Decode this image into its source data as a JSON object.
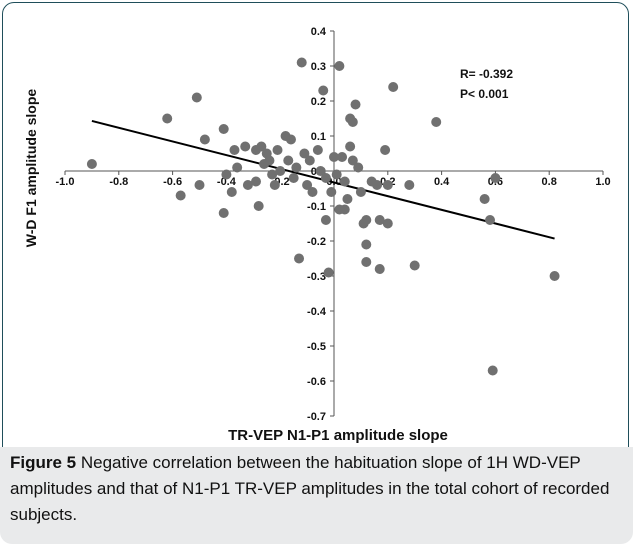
{
  "figure": {
    "label": "Figure 5",
    "caption": "Negative correlation between the habituation slope of 1H WD-VEP amplitudes and that of N1-P1 TR-VEP amplitudes in the total cohort of recorded subjects."
  },
  "chart_data": {
    "type": "scatter",
    "xlabel": "TR-VEP N1-P1 amplitude slope",
    "ylabel": "W-D F1 amplitude slope",
    "xlim": [
      -1.0,
      1.0
    ],
    "ylim": [
      -0.7,
      0.4
    ],
    "xticks": [
      -1.0,
      -0.8,
      -0.6,
      -0.4,
      -0.2,
      0.0,
      0.2,
      0.4,
      0.6,
      0.8,
      1.0
    ],
    "yticks": [
      0.4,
      0.3,
      0.2,
      0.1,
      0.0,
      -0.1,
      -0.2,
      -0.3,
      -0.4,
      -0.5,
      -0.6,
      -0.7
    ],
    "xtick_labels": [
      "-1.0",
      "-0.8",
      "-0.6",
      "-0.4",
      "-0.2",
      "0.0",
      "0.2",
      "0.4",
      "0.6",
      "0.8",
      "1.0"
    ],
    "ytick_labels": [
      "0.4",
      "0.3",
      "0.2",
      "0.1",
      "0.0",
      "-0.1",
      "-0.2",
      "-0.3",
      "-0.4",
      "-0.5",
      "-0.6",
      "-0.7"
    ],
    "grid": false,
    "marker_color": "#707070",
    "line_color": "#000000",
    "annotations": [
      "R=  -0.392",
      "P< 0.001"
    ],
    "trendline": {
      "x": [
        -0.9,
        0.82
      ],
      "y": [
        0.143,
        -0.193
      ]
    },
    "points": [
      [
        -0.9,
        0.02
      ],
      [
        -0.62,
        0.15
      ],
      [
        -0.57,
        -0.07
      ],
      [
        -0.51,
        0.21
      ],
      [
        -0.5,
        -0.04
      ],
      [
        -0.48,
        0.09
      ],
      [
        -0.41,
        0.12
      ],
      [
        -0.41,
        -0.12
      ],
      [
        -0.4,
        -0.01
      ],
      [
        -0.38,
        -0.06
      ],
      [
        -0.37,
        0.06
      ],
      [
        -0.36,
        0.01
      ],
      [
        -0.33,
        0.07
      ],
      [
        -0.32,
        -0.04
      ],
      [
        -0.29,
        0.06
      ],
      [
        -0.29,
        -0.03
      ],
      [
        -0.28,
        -0.1
      ],
      [
        -0.27,
        0.07
      ],
      [
        -0.26,
        0.02
      ],
      [
        -0.25,
        0.05
      ],
      [
        -0.24,
        0.03
      ],
      [
        -0.23,
        -0.01
      ],
      [
        -0.22,
        -0.04
      ],
      [
        -0.21,
        0.06
      ],
      [
        -0.2,
        0.0
      ],
      [
        -0.18,
        0.1
      ],
      [
        -0.17,
        0.03
      ],
      [
        -0.16,
        0.09
      ],
      [
        -0.15,
        -0.02
      ],
      [
        -0.14,
        0.01
      ],
      [
        -0.13,
        -0.25
      ],
      [
        -0.12,
        0.31
      ],
      [
        -0.11,
        0.05
      ],
      [
        -0.1,
        -0.04
      ],
      [
        -0.09,
        0.03
      ],
      [
        -0.08,
        -0.06
      ],
      [
        -0.06,
        0.06
      ],
      [
        -0.05,
        0.0
      ],
      [
        -0.04,
        0.23
      ],
      [
        -0.03,
        -0.02
      ],
      [
        -0.03,
        -0.14
      ],
      [
        -0.02,
        -0.29
      ],
      [
        -0.01,
        -0.06
      ],
      [
        0.0,
        0.04
      ],
      [
        0.01,
        -0.01
      ],
      [
        0.02,
        -0.11
      ],
      [
        0.02,
        0.3
      ],
      [
        0.03,
        0.04
      ],
      [
        0.04,
        -0.03
      ],
      [
        0.04,
        -0.11
      ],
      [
        0.05,
        -0.08
      ],
      [
        0.06,
        0.15
      ],
      [
        0.06,
        0.07
      ],
      [
        0.07,
        0.14
      ],
      [
        0.07,
        0.03
      ],
      [
        0.08,
        0.19
      ],
      [
        0.09,
        0.01
      ],
      [
        0.1,
        -0.06
      ],
      [
        0.11,
        -0.15
      ],
      [
        0.12,
        -0.14
      ],
      [
        0.12,
        -0.21
      ],
      [
        0.12,
        -0.26
      ],
      [
        0.14,
        -0.03
      ],
      [
        0.16,
        -0.04
      ],
      [
        0.17,
        -0.14
      ],
      [
        0.17,
        -0.28
      ],
      [
        0.19,
        0.06
      ],
      [
        0.2,
        -0.04
      ],
      [
        0.2,
        -0.15
      ],
      [
        0.22,
        0.24
      ],
      [
        0.28,
        -0.04
      ],
      [
        0.3,
        -0.27
      ],
      [
        0.38,
        0.14
      ],
      [
        0.56,
        -0.08
      ],
      [
        0.58,
        -0.14
      ],
      [
        0.59,
        -0.57
      ],
      [
        0.6,
        -0.02
      ],
      [
        0.82,
        -0.3
      ]
    ]
  }
}
